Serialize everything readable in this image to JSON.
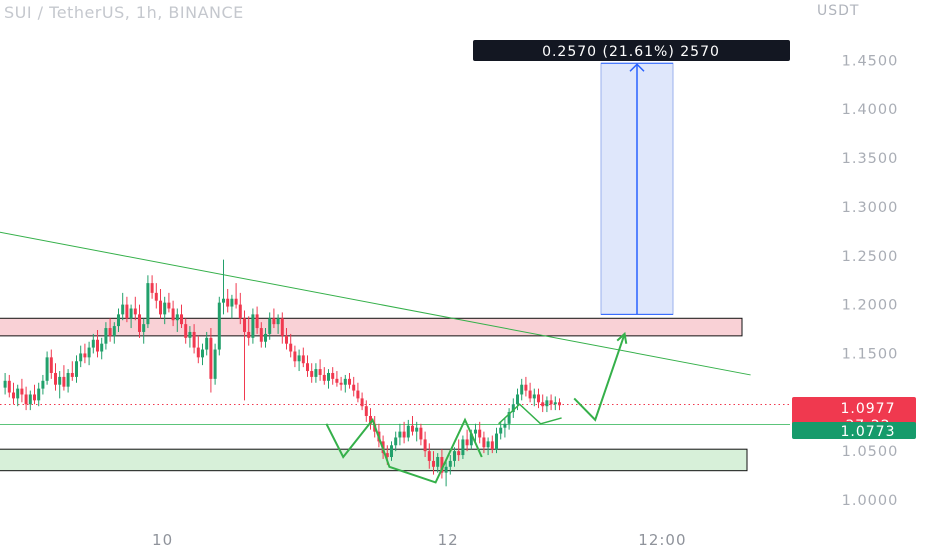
{
  "header": {
    "title": "SUI / TetherUS, 1h, BINANCE",
    "currency": "USDT"
  },
  "colors": {
    "up": "#22a06b",
    "down": "#f0394f",
    "resistance_fill": "#f9d1d6",
    "support_fill": "#d7f0d9",
    "target_fill": "#dfe7fb",
    "target_line": "#2962ff",
    "trend": "#35b04a",
    "label_bg": "#131722"
  },
  "chart_data": {
    "type": "candlestick",
    "title": "SUI / TetherUS, 1h, BINANCE",
    "y_axis_unit": "USDT",
    "y_ticks": [
      "1.4500",
      "1.4000",
      "1.3500",
      "1.3000",
      "1.2500",
      "1.2000",
      "1.1500",
      "1.0500",
      "1.0000"
    ],
    "y_tick_values": [
      1.45,
      1.4,
      1.35,
      1.3,
      1.25,
      1.2,
      1.15,
      1.05,
      1.0
    ],
    "x_ticks": [
      {
        "label": "10",
        "bar": 38
      },
      {
        "label": "12",
        "bar": 106
      },
      {
        "label": "12:00",
        "bar": 157
      }
    ],
    "ylim": [
      0.98,
      1.49
    ],
    "grid": false,
    "last_price": "1.0977",
    "countdown": "37:22",
    "level_price": "1.0773",
    "measure_label": "0.2570 (21.61%) 2570",
    "candles": [
      [
        1.115,
        1.13,
        1.108,
        1.122
      ],
      [
        1.122,
        1.128,
        1.105,
        1.11
      ],
      [
        1.11,
        1.12,
        1.098,
        1.104
      ],
      [
        1.104,
        1.118,
        1.096,
        1.114
      ],
      [
        1.114,
        1.124,
        1.1,
        1.108
      ],
      [
        1.108,
        1.116,
        1.092,
        1.098
      ],
      [
        1.098,
        1.112,
        1.092,
        1.108
      ],
      [
        1.108,
        1.118,
        1.098,
        1.102
      ],
      [
        1.102,
        1.12,
        1.096,
        1.114
      ],
      [
        1.114,
        1.128,
        1.108,
        1.122
      ],
      [
        1.122,
        1.152,
        1.118,
        1.146
      ],
      [
        1.146,
        1.154,
        1.124,
        1.13
      ],
      [
        1.13,
        1.14,
        1.112,
        1.118
      ],
      [
        1.118,
        1.132,
        1.104,
        1.126
      ],
      [
        1.126,
        1.138,
        1.112,
        1.116
      ],
      [
        1.116,
        1.134,
        1.11,
        1.13
      ],
      [
        1.13,
        1.142,
        1.122,
        1.126
      ],
      [
        1.126,
        1.148,
        1.12,
        1.142
      ],
      [
        1.142,
        1.158,
        1.136,
        1.15
      ],
      [
        1.15,
        1.16,
        1.14,
        1.146
      ],
      [
        1.146,
        1.162,
        1.138,
        1.156
      ],
      [
        1.156,
        1.17,
        1.15,
        1.164
      ],
      [
        1.164,
        1.174,
        1.146,
        1.152
      ],
      [
        1.152,
        1.166,
        1.144,
        1.16
      ],
      [
        1.16,
        1.182,
        1.154,
        1.176
      ],
      [
        1.176,
        1.186,
        1.162,
        1.168
      ],
      [
        1.168,
        1.182,
        1.16,
        1.178
      ],
      [
        1.178,
        1.196,
        1.172,
        1.19
      ],
      [
        1.19,
        1.212,
        1.184,
        1.2
      ],
      [
        1.2,
        1.208,
        1.182,
        1.186
      ],
      [
        1.186,
        1.2,
        1.176,
        1.196
      ],
      [
        1.196,
        1.208,
        1.184,
        1.19
      ],
      [
        1.19,
        1.2,
        1.166,
        1.172
      ],
      [
        1.172,
        1.186,
        1.16,
        1.18
      ],
      [
        1.18,
        1.23,
        1.176,
        1.222
      ],
      [
        1.222,
        1.23,
        1.206,
        1.212
      ],
      [
        1.212,
        1.222,
        1.196,
        1.204
      ],
      [
        1.204,
        1.216,
        1.186,
        1.19
      ],
      [
        1.19,
        1.208,
        1.18,
        1.202
      ],
      [
        1.202,
        1.212,
        1.192,
        1.196
      ],
      [
        1.196,
        1.204,
        1.178,
        1.184
      ],
      [
        1.184,
        1.196,
        1.172,
        1.19
      ],
      [
        1.19,
        1.2,
        1.176,
        1.18
      ],
      [
        1.18,
        1.186,
        1.16,
        1.166
      ],
      [
        1.166,
        1.178,
        1.156,
        1.172
      ],
      [
        1.172,
        1.18,
        1.15,
        1.156
      ],
      [
        1.156,
        1.168,
        1.14,
        1.146
      ],
      [
        1.146,
        1.16,
        1.138,
        1.154
      ],
      [
        1.154,
        1.172,
        1.148,
        1.166
      ],
      [
        1.166,
        1.176,
        1.11,
        1.124
      ],
      [
        1.124,
        1.16,
        1.118,
        1.154
      ],
      [
        1.154,
        1.208,
        1.148,
        1.202
      ],
      [
        1.202,
        1.246,
        1.19,
        1.206
      ],
      [
        1.206,
        1.216,
        1.192,
        1.198
      ],
      [
        1.198,
        1.21,
        1.186,
        1.206
      ],
      [
        1.206,
        1.222,
        1.196,
        1.2
      ],
      [
        1.2,
        1.212,
        1.18,
        1.186
      ],
      [
        1.186,
        1.194,
        1.102,
        1.172
      ],
      [
        1.172,
        1.188,
        1.158,
        1.166
      ],
      [
        1.166,
        1.196,
        1.16,
        1.19
      ],
      [
        1.19,
        1.198,
        1.17,
        1.176
      ],
      [
        1.176,
        1.182,
        1.156,
        1.162
      ],
      [
        1.162,
        1.176,
        1.156,
        1.17
      ],
      [
        1.17,
        1.192,
        1.164,
        1.186
      ],
      [
        1.186,
        1.196,
        1.176,
        1.18
      ],
      [
        1.18,
        1.19,
        1.17,
        1.186
      ],
      [
        1.186,
        1.192,
        1.16,
        1.168
      ],
      [
        1.168,
        1.176,
        1.154,
        1.16
      ],
      [
        1.16,
        1.17,
        1.146,
        1.152
      ],
      [
        1.152,
        1.158,
        1.136,
        1.142
      ],
      [
        1.142,
        1.154,
        1.132,
        1.148
      ],
      [
        1.148,
        1.156,
        1.136,
        1.14
      ],
      [
        1.14,
        1.148,
        1.126,
        1.132
      ],
      [
        1.132,
        1.14,
        1.12,
        1.126
      ],
      [
        1.126,
        1.14,
        1.12,
        1.134
      ],
      [
        1.134,
        1.144,
        1.122,
        1.128
      ],
      [
        1.128,
        1.136,
        1.118,
        1.122
      ],
      [
        1.122,
        1.134,
        1.114,
        1.13
      ],
      [
        1.13,
        1.136,
        1.118,
        1.124
      ],
      [
        1.124,
        1.132,
        1.116,
        1.12
      ],
      [
        1.12,
        1.126,
        1.112,
        1.118
      ],
      [
        1.118,
        1.128,
        1.11,
        1.124
      ],
      [
        1.124,
        1.13,
        1.114,
        1.118
      ],
      [
        1.118,
        1.126,
        1.106,
        1.112
      ],
      [
        1.112,
        1.12,
        1.1,
        1.104
      ],
      [
        1.104,
        1.11,
        1.092,
        1.096
      ],
      [
        1.096,
        1.102,
        1.08,
        1.086
      ],
      [
        1.086,
        1.094,
        1.072,
        1.078
      ],
      [
        1.078,
        1.086,
        1.064,
        1.07
      ],
      [
        1.07,
        1.078,
        1.054,
        1.06
      ],
      [
        1.06,
        1.066,
        1.042,
        1.048
      ],
      [
        1.048,
        1.056,
        1.036,
        1.044
      ],
      [
        1.044,
        1.06,
        1.04,
        1.056
      ],
      [
        1.056,
        1.07,
        1.05,
        1.064
      ],
      [
        1.064,
        1.078,
        1.056,
        1.07
      ],
      [
        1.07,
        1.08,
        1.058,
        1.064
      ],
      [
        1.064,
        1.082,
        1.06,
        1.076
      ],
      [
        1.076,
        1.086,
        1.066,
        1.07
      ],
      [
        1.07,
        1.08,
        1.06,
        1.074
      ],
      [
        1.074,
        1.078,
        1.056,
        1.062
      ],
      [
        1.062,
        1.07,
        1.044,
        1.05
      ],
      [
        1.05,
        1.058,
        1.032,
        1.04
      ],
      [
        1.04,
        1.05,
        1.026,
        1.034
      ],
      [
        1.034,
        1.048,
        1.028,
        1.044
      ],
      [
        1.044,
        1.052,
        1.022,
        1.028
      ],
      [
        1.028,
        1.04,
        1.014,
        1.034
      ],
      [
        1.034,
        1.046,
        1.026,
        1.04
      ],
      [
        1.04,
        1.054,
        1.034,
        1.05
      ],
      [
        1.05,
        1.062,
        1.04,
        1.046
      ],
      [
        1.046,
        1.066,
        1.042,
        1.062
      ],
      [
        1.062,
        1.072,
        1.05,
        1.056
      ],
      [
        1.056,
        1.072,
        1.052,
        1.068
      ],
      [
        1.068,
        1.078,
        1.06,
        1.072
      ],
      [
        1.072,
        1.08,
        1.058,
        1.064
      ],
      [
        1.064,
        1.07,
        1.048,
        1.054
      ],
      [
        1.054,
        1.064,
        1.046,
        1.06
      ],
      [
        1.06,
        1.066,
        1.048,
        1.052
      ],
      [
        1.052,
        1.074,
        1.048,
        1.068
      ],
      [
        1.068,
        1.08,
        1.062,
        1.074
      ],
      [
        1.074,
        1.084,
        1.064,
        1.078
      ],
      [
        1.078,
        1.094,
        1.072,
        1.09
      ],
      [
        1.09,
        1.104,
        1.084,
        1.098
      ],
      [
        1.098,
        1.114,
        1.092,
        1.108
      ],
      [
        1.108,
        1.124,
        1.102,
        1.118
      ],
      [
        1.118,
        1.126,
        1.106,
        1.112
      ],
      [
        1.112,
        1.12,
        1.1,
        1.104
      ],
      [
        1.104,
        1.114,
        1.096,
        1.108
      ],
      [
        1.108,
        1.114,
        1.094,
        1.1
      ],
      [
        1.1,
        1.108,
        1.09,
        1.096
      ],
      [
        1.096,
        1.106,
        1.09,
        1.102
      ],
      [
        1.102,
        1.108,
        1.092,
        1.098
      ],
      [
        1.098,
        1.106,
        1.092,
        1.1
      ],
      [
        1.1,
        1.104,
        1.092,
        1.097
      ]
    ],
    "resistance_zone": {
      "from": 1.168,
      "to": 1.186
    },
    "support_zone": {
      "from": 1.03,
      "to": 1.052
    },
    "target_zone": {
      "from": 1.19,
      "to": 1.447
    },
    "trendline": {
      "from": [
        -8,
        1.28
      ],
      "to": [
        178,
        1.128
      ]
    },
    "projection": [
      [
        118,
        1.078
      ],
      [
        123,
        1.098
      ],
      [
        128,
        1.078
      ],
      [
        133,
        1.084
      ]
    ],
    "zigzag": [
      [
        77,
        1.078
      ],
      [
        81,
        1.044
      ],
      [
        88,
        1.082
      ],
      [
        92,
        1.034
      ],
      [
        103,
        1.018
      ],
      [
        110,
        1.082
      ],
      [
        114,
        1.044
      ]
    ],
    "forecast": [
      [
        136,
        1.104
      ],
      [
        141,
        1.082
      ],
      [
        148,
        1.17
      ]
    ],
    "bars_visible": 190
  }
}
